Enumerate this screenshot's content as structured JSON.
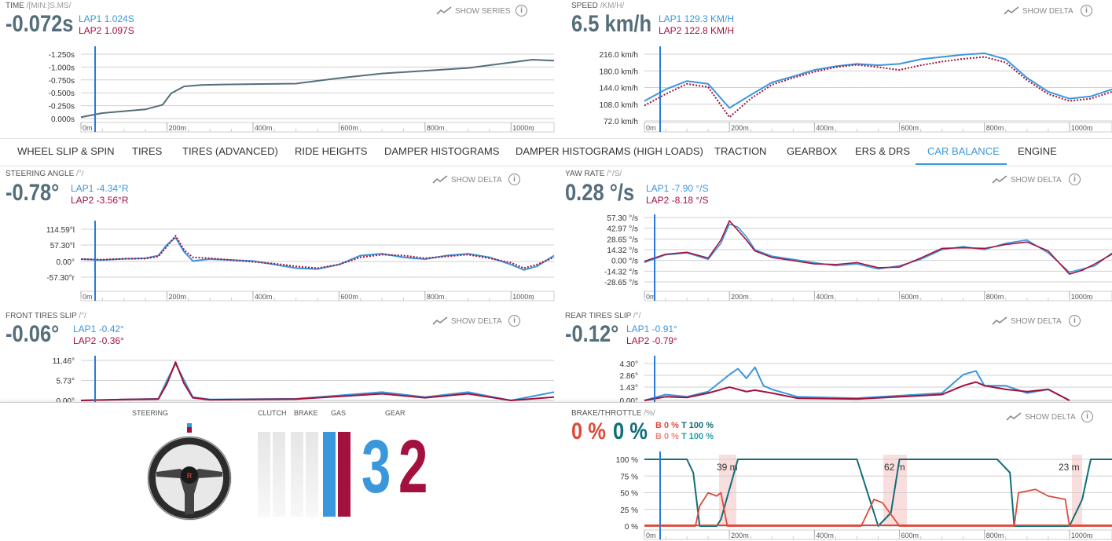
{
  "colors": {
    "lap1": "#3a97dc",
    "lap2": "#a3123e",
    "accent": "#3a97dc",
    "brake": "#e0493a",
    "throttle": "#0f6e78",
    "brake2": "#e8877b",
    "throttle2": "#20a2a8",
    "grey_line": "#546e7a"
  },
  "common": {
    "show_delta": "SHOW DELTA",
    "show_series": "SHOW SERIES",
    "info": "i"
  },
  "distance_ticks": [
    "0m",
    "200m",
    "400m",
    "600m",
    "800m",
    "1000m"
  ],
  "time": {
    "title": "TIME",
    "unit": "/[MIN:]S.MS/",
    "value": "-0.072s",
    "lap1": "LAP1 1.024S",
    "lap2": "LAP2 1.097S",
    "chart_data": {
      "type": "line",
      "y_ticks": [
        "-1.250s",
        "-1.000s",
        "-0.750s",
        "-0.500s",
        "-0.250s",
        "0.000s"
      ],
      "ylim": [
        0,
        1.4
      ],
      "series": [
        {
          "x": [
            0,
            50,
            100,
            150,
            190,
            210,
            240,
            280,
            330,
            400,
            500,
            600,
            700,
            800,
            900,
            1000,
            1050,
            1100
          ],
          "y": [
            0.03,
            0.12,
            0.16,
            0.2,
            0.3,
            0.55,
            0.7,
            0.73,
            0.74,
            0.75,
            0.76,
            0.88,
            0.98,
            1.04,
            1.1,
            1.22,
            1.28,
            1.26
          ]
        }
      ]
    }
  },
  "speed": {
    "title": "SPEED",
    "unit": "/KM/H/",
    "value": "6.5 km/h",
    "lap1": "LAP1 129.3 KM/H",
    "lap2": "LAP2 122.8 KM/H",
    "chart_data": {
      "type": "line",
      "y_ticks": [
        "216.0 km/h",
        "180.0 km/h",
        "144.0 km/h",
        "108.0 km/h",
        "72.0 km/h"
      ],
      "ylim": [
        72,
        216
      ],
      "series": [
        {
          "name": "LAP1",
          "x": [
            0,
            50,
            100,
            150,
            200,
            250,
            300,
            350,
            400,
            450,
            500,
            550,
            600,
            650,
            700,
            750,
            800,
            850,
            900,
            950,
            1000,
            1050,
            1100
          ],
          "y": [
            115,
            140,
            158,
            152,
            100,
            128,
            155,
            168,
            182,
            190,
            195,
            192,
            195,
            205,
            210,
            215,
            218,
            205,
            165,
            135,
            120,
            125,
            140
          ]
        },
        {
          "name": "LAP2",
          "x": [
            0,
            50,
            100,
            150,
            200,
            250,
            300,
            350,
            400,
            450,
            500,
            550,
            600,
            650,
            700,
            750,
            800,
            850,
            900,
            950,
            1000,
            1050,
            1100
          ],
          "y": [
            105,
            130,
            152,
            145,
            80,
            120,
            150,
            165,
            178,
            188,
            193,
            188,
            182,
            192,
            200,
            206,
            210,
            198,
            160,
            130,
            115,
            120,
            135
          ]
        }
      ]
    }
  },
  "tabs": [
    "WHEEL SLIP & SPIN",
    "TIRES",
    "TIRES (ADVANCED)",
    "RIDE HEIGHTS",
    "DAMPER HISTOGRAMS",
    "DAMPER HISTOGRAMS (HIGH LOADS)",
    "TRACTION",
    "GEARBOX",
    "ERS & DRS",
    "CAR BALANCE",
    "ENGINE"
  ],
  "active_tab": 9,
  "steering": {
    "title": "STEERING ANGLE",
    "unit": "/°/",
    "value": "-0.78°",
    "lap1": "LAP1 -4.34°R",
    "lap2": "LAP2 -3.56°R",
    "chart_data": {
      "type": "line",
      "y_ticks": [
        "114.59°l",
        "57.30°l",
        "0.00°",
        "-57.30°r"
      ],
      "ylim": [
        -100,
        170
      ],
      "series": [
        {
          "name": "LAP1",
          "x": [
            0,
            50,
            100,
            150,
            180,
            200,
            220,
            240,
            260,
            300,
            400,
            450,
            500,
            550,
            600,
            650,
            700,
            750,
            800,
            850,
            900,
            950,
            1000,
            1030,
            1060,
            1100
          ],
          "y": [
            0,
            -5,
            2,
            5,
            20,
            80,
            120,
            40,
            -10,
            0,
            -10,
            -30,
            -50,
            -55,
            -30,
            20,
            30,
            10,
            0,
            20,
            30,
            10,
            -30,
            -60,
            -40,
            20
          ]
        },
        {
          "name": "LAP2",
          "x": [
            0,
            50,
            100,
            150,
            180,
            200,
            220,
            240,
            260,
            300,
            400,
            450,
            500,
            550,
            600,
            650,
            700,
            750,
            800,
            850,
            900,
            950,
            1000,
            1030,
            1060,
            1100
          ],
          "y": [
            0,
            -3,
            2,
            3,
            15,
            70,
            130,
            50,
            10,
            5,
            -15,
            -25,
            -40,
            -50,
            -30,
            10,
            25,
            20,
            5,
            15,
            25,
            5,
            -20,
            -50,
            -30,
            10
          ]
        }
      ]
    }
  },
  "yaw": {
    "title": "YAW RATE",
    "unit": "/°/S/",
    "value": "0.28 °/s",
    "lap1": "LAP1 -7.90 °/S",
    "lap2": "LAP2 -8.18 °/S",
    "chart_data": {
      "type": "line",
      "y_ticks": [
        "57.30 °/s",
        "42.97 °/s",
        "28.65 °/s",
        "14.32 °/s",
        "0.00 °/s",
        "-14.32 °/s",
        "-28.65 °/s"
      ],
      "ylim": [
        -40,
        60
      ],
      "series": [
        {
          "name": "LAP1",
          "x": [
            0,
            50,
            100,
            150,
            180,
            200,
            220,
            240,
            260,
            300,
            400,
            450,
            500,
            550,
            600,
            650,
            700,
            750,
            800,
            850,
            900,
            950,
            1000,
            1030,
            1060,
            1100
          ],
          "y": [
            -10,
            2,
            5,
            -5,
            20,
            50,
            45,
            30,
            10,
            0,
            -10,
            -15,
            -12,
            -20,
            -15,
            -5,
            10,
            15,
            10,
            20,
            25,
            5,
            -25,
            -20,
            -15,
            5
          ]
        },
        {
          "name": "LAP2",
          "x": [
            0,
            50,
            100,
            150,
            180,
            200,
            220,
            240,
            260,
            300,
            400,
            450,
            500,
            550,
            600,
            650,
            700,
            750,
            800,
            850,
            900,
            950,
            1000,
            1030,
            1060,
            1100
          ],
          "y": [
            -8,
            3,
            6,
            -3,
            25,
            55,
            40,
            25,
            8,
            -2,
            -12,
            -13,
            -10,
            -18,
            -17,
            -3,
            12,
            13,
            12,
            18,
            22,
            8,
            -28,
            -22,
            -12,
            3
          ]
        }
      ]
    }
  },
  "front_slip": {
    "title": "FRONT TIRES SLIP",
    "unit": "/°/",
    "value": "-0.06°",
    "lap1": "LAP1 -0.42°",
    "lap2": "LAP2 -0.36°",
    "chart_data": {
      "type": "line",
      "y_ticks": [
        "11.46°",
        "5.73°",
        "0.00°"
      ],
      "ylim": [
        0,
        12
      ],
      "series": [
        {
          "name": "LAP1",
          "x": [
            0,
            100,
            180,
            200,
            220,
            240,
            260,
            300,
            500,
            700,
            800,
            900,
            1000,
            1100
          ],
          "y": [
            0,
            0.3,
            0.5,
            6,
            11,
            6,
            1,
            0.3,
            0.5,
            2.5,
            1,
            2.5,
            0,
            2.5
          ]
        },
        {
          "name": "LAP2",
          "x": [
            0,
            100,
            180,
            200,
            220,
            240,
            260,
            300,
            500,
            700,
            800,
            900,
            1000,
            1100
          ],
          "y": [
            0,
            0.3,
            0.4,
            5,
            11.5,
            5,
            0.8,
            0.2,
            0.4,
            2,
            0.8,
            2,
            0,
            1
          ]
        }
      ]
    }
  },
  "rear_slip": {
    "title": "REAR TIRES SLIP",
    "unit": "/°/",
    "value": "-0.12°",
    "lap1": "LAP1 -0.91°",
    "lap2": "LAP2 -0.79°",
    "chart_data": {
      "type": "line",
      "y_ticks": [
        "4.30°",
        "2.86°",
        "1.43°",
        "0.00°"
      ],
      "ylim": [
        0,
        5
      ],
      "series": [
        {
          "name": "LAP1",
          "x": [
            0,
            50,
            100,
            150,
            200,
            220,
            240,
            260,
            280,
            300,
            360,
            500,
            700,
            750,
            780,
            800,
            850,
            900,
            950,
            1000
          ],
          "y": [
            0,
            0.8,
            0.5,
            1.2,
            3.5,
            4.3,
            3,
            4.5,
            2,
            1.5,
            0.5,
            0.3,
            1,
            3.5,
            4,
            2,
            2,
            1,
            1.5,
            0
          ]
        },
        {
          "name": "LAP2",
          "x": [
            0,
            50,
            100,
            150,
            200,
            220,
            240,
            260,
            280,
            300,
            360,
            500,
            700,
            750,
            780,
            800,
            850,
            900,
            950,
            1000
          ],
          "y": [
            0,
            0.5,
            0.4,
            1,
            1.8,
            1.5,
            1.2,
            1.4,
            1.2,
            1,
            0.3,
            0.2,
            0.8,
            2,
            2.5,
            2,
            1.5,
            1.2,
            1.5,
            0
          ]
        }
      ]
    }
  },
  "inputs": {
    "steering_label": "STEERING",
    "clutch_label": "CLUTCH",
    "brake_label": "BRAKE",
    "gas_label": "GAS",
    "gear_label": "GEAR",
    "gear_lap1": "3",
    "gear_lap2": "2"
  },
  "brake_throttle": {
    "title": "BRAKE/THROTTLE",
    "unit": "/%/",
    "brake_value": "0 %",
    "throttle_value": "0 %",
    "lap1_b": "B 0 %",
    "lap1_t": "T 100 %",
    "lap2_b": "B 0 %",
    "lap2_t": "T 100 %",
    "zones": [
      "39 m",
      "62 m",
      "23 m"
    ],
    "chart_data": {
      "type": "line",
      "y_ticks": [
        "100 %",
        "75 %",
        "50 %",
        "25 %",
        "0 %"
      ],
      "ylim": [
        0,
        100
      ],
      "series": [
        {
          "name": "T",
          "x": [
            0,
            100,
            115,
            130,
            170,
            180,
            220,
            500,
            510,
            550,
            580,
            600,
            640,
            830,
            860,
            870,
            1000,
            1030,
            1050,
            1100
          ],
          "y": [
            100,
            100,
            80,
            0,
            0,
            10,
            100,
            100,
            80,
            0,
            20,
            100,
            100,
            100,
            80,
            0,
            0,
            40,
            100,
            100
          ]
        },
        {
          "name": "B",
          "x": [
            0,
            120,
            130,
            150,
            170,
            180,
            195,
            500,
            510,
            540,
            560,
            600,
            830,
            870,
            880,
            920,
            950,
            990,
            1000,
            1100
          ],
          "y": [
            0,
            0,
            30,
            50,
            45,
            50,
            0,
            0,
            0,
            40,
            35,
            0,
            0,
            0,
            50,
            55,
            45,
            40,
            0,
            0
          ]
        }
      ]
    }
  }
}
